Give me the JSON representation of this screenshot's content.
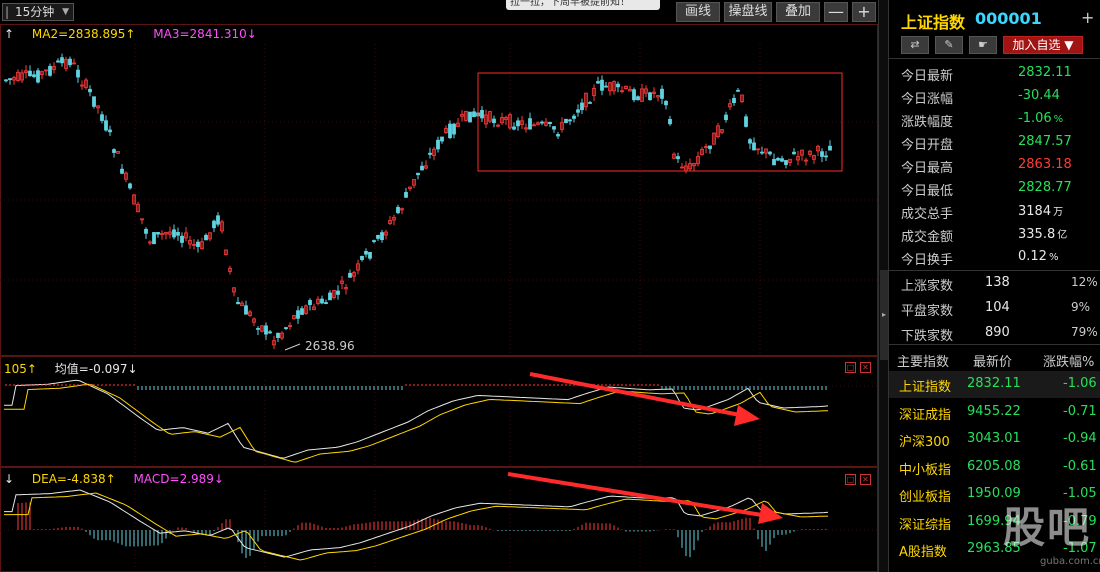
{
  "toolbar": {
    "period": "15分钟",
    "tip": "拉一拉，下周早被提前知！",
    "draw_label": "画线",
    "trade_line_label": "操盘线",
    "overlay_label": "叠加",
    "minus_label": "—",
    "plus_label": "+"
  },
  "main_legend": {
    "ma2": "MA2=2838.895↑",
    "ma3": "MA3=2841.310↓",
    "arrow": "↑"
  },
  "indicator1_legend": {
    "value": "105↑",
    "avg": "均值=-0.097↓"
  },
  "indicator2_legend": {
    "arrow": "↓",
    "dea": "DEA=-4.838↑",
    "macd": "MACD=2.989↓"
  },
  "low_marker": "2638.96",
  "colors": {
    "up": "#ff3b3b",
    "down": "#5fd3e0",
    "ma_white": "#e8e8e8",
    "ma_yellow": "#ffd700",
    "annotation": "#ff2a2a"
  },
  "chart_data": {
    "type": "candlestick",
    "periods_shown": 210,
    "low_annotation": 2638.96,
    "overlay_lines": [
      "MA2",
      "MA3"
    ],
    "sub_charts": [
      "indicator",
      "MACD"
    ]
  },
  "right_panel": {
    "name": "上证指数",
    "code": "000001",
    "close_label": "+",
    "tools": {
      "switch": "⇄",
      "pen": "✎",
      "hand": "☛",
      "add": "加入自选 ▼"
    },
    "quotes": [
      {
        "label": "今日最新",
        "value": "2832.11",
        "unit": "",
        "color": "green"
      },
      {
        "label": "今日涨幅",
        "value": "-30.44",
        "unit": "",
        "color": "green"
      },
      {
        "label": "涨跌幅度",
        "value": "-1.06",
        "unit": "%",
        "color": "green"
      },
      {
        "label": "今日开盘",
        "value": "2847.57",
        "unit": "",
        "color": "green"
      },
      {
        "label": "今日最高",
        "value": "2863.18",
        "unit": "",
        "color": "red"
      },
      {
        "label": "今日最低",
        "value": "2828.77",
        "unit": "",
        "color": "green"
      },
      {
        "label": "成交总手",
        "value": "3184",
        "unit": "万",
        "color": "wht"
      },
      {
        "label": "成交金额",
        "value": "335.8",
        "unit": "亿",
        "color": "wht"
      },
      {
        "label": "今日换手",
        "value": "0.12",
        "unit": "%",
        "color": "wht"
      }
    ],
    "breadth": [
      {
        "label": "上涨家数",
        "count": "138",
        "pct": "12%"
      },
      {
        "label": "平盘家数",
        "count": "104",
        "pct": "9%"
      },
      {
        "label": "下跌家数",
        "count": "890",
        "pct": "79%"
      }
    ],
    "index_header": {
      "name": "主要指数",
      "price": "最新价",
      "change": "涨跌幅%"
    },
    "indices": [
      {
        "name": "上证指数",
        "price": "2832.11",
        "change": "-1.06"
      },
      {
        "name": "深证成指",
        "price": "9455.22",
        "change": "-0.71"
      },
      {
        "name": "沪深300",
        "price": "3043.01",
        "change": "-0.94"
      },
      {
        "name": "中小板指",
        "price": "6205.08",
        "change": "-0.61"
      },
      {
        "name": "创业板指",
        "price": "1950.09",
        "change": "-1.05"
      },
      {
        "name": "深证综指",
        "price": "1699.94",
        "change": "-0.79"
      },
      {
        "name": "A股指数",
        "price": "2963.85",
        "change": "-1.07"
      }
    ]
  },
  "watermark": {
    "text": "股吧",
    "url": "guba.com.cn"
  }
}
